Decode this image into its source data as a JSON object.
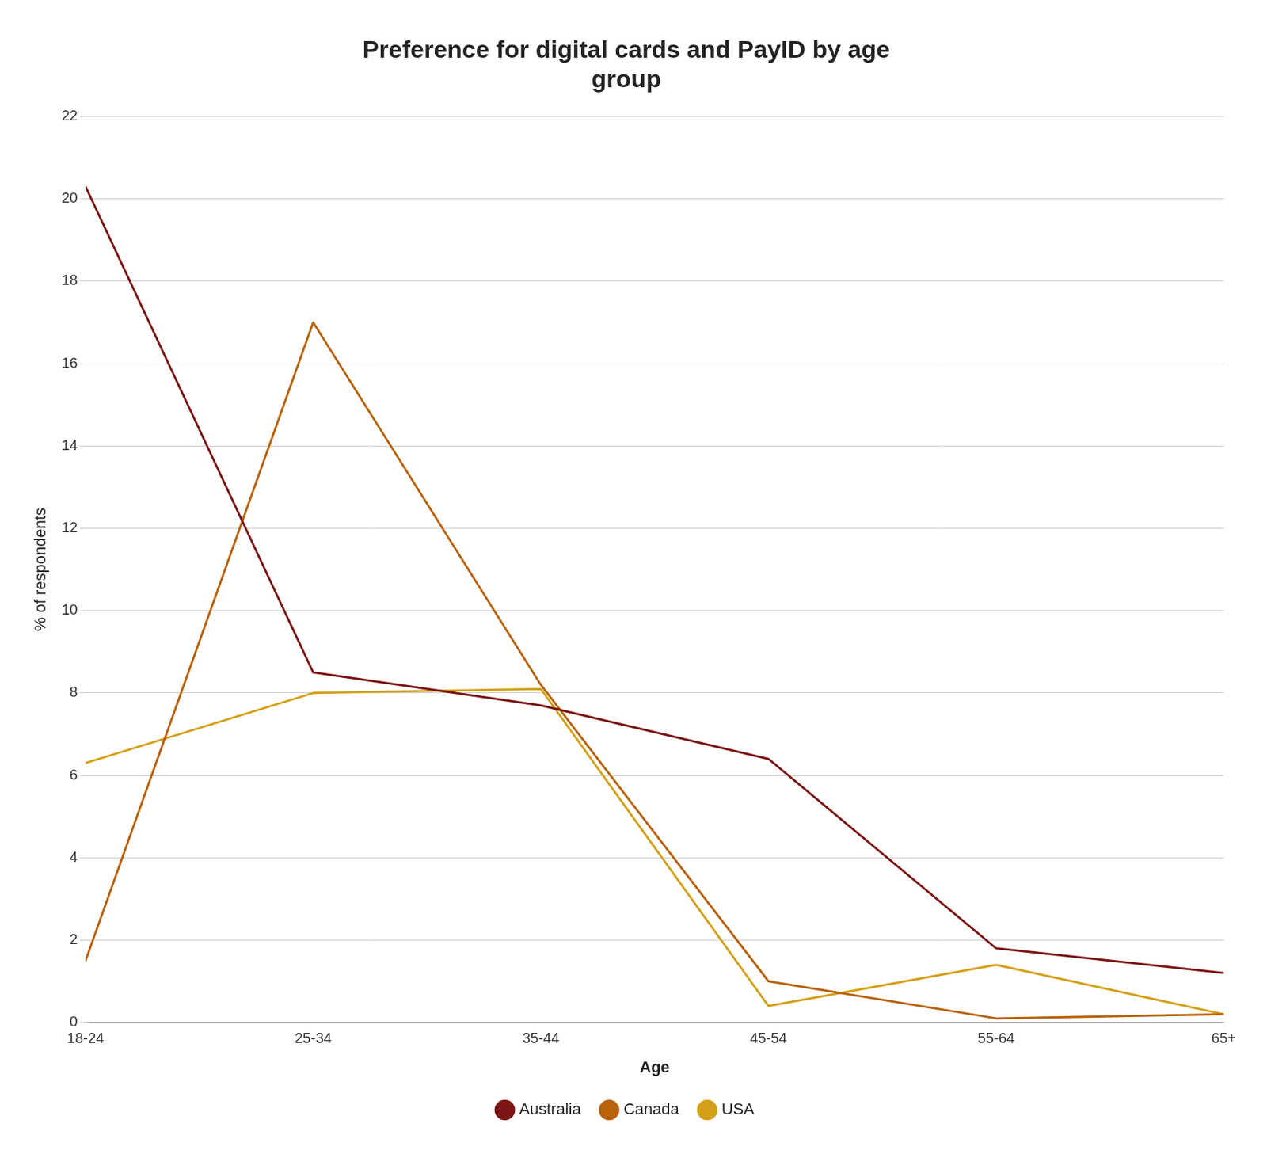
{
  "chart_data": {
    "type": "line",
    "title": "Preference for digital cards and PayID by age\ngroup",
    "x_label": "Age",
    "y_label": "% of respondents",
    "categories": [
      "18-24",
      "25-34",
      "35-44",
      "45-54",
      "55-64",
      "65+"
    ],
    "series": [
      {
        "name": "Australia",
        "color": "#7B1515",
        "values": [
          20.3,
          8.5,
          7.7,
          6.4,
          1.8,
          1.2
        ]
      },
      {
        "name": "Canada",
        "color": "#B8620A",
        "values": [
          1.5,
          17.0,
          8.2,
          1.0,
          0.1,
          0.2
        ]
      },
      {
        "name": "USA",
        "color": "#D4A017",
        "values": [
          6.3,
          8.0,
          8.1,
          0.4,
          1.4,
          0.2
        ]
      }
    ],
    "ylim": [
      0,
      22
    ],
    "yticks": [
      0,
      2,
      4,
      6,
      8,
      10,
      12,
      14,
      16,
      18,
      20,
      22
    ],
    "grid": true,
    "legend": "bottom"
  }
}
